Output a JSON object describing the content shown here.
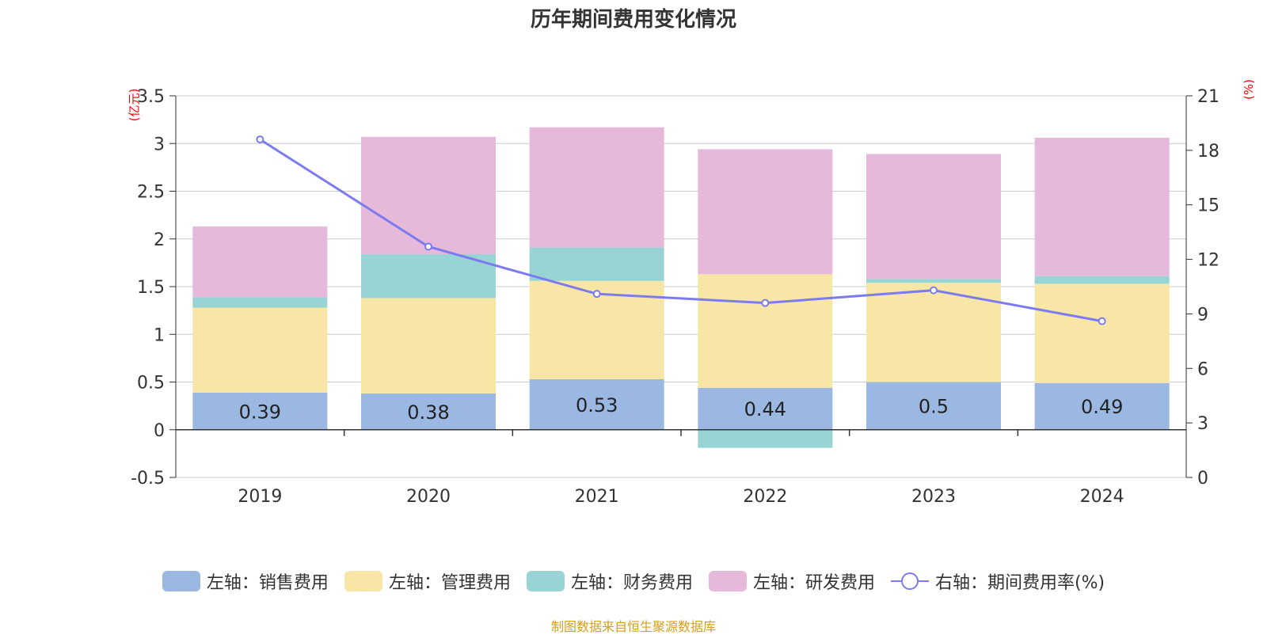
{
  "title": "历年期间费用变化情况",
  "left_unit": "(亿元)",
  "right_unit": "(%)",
  "source": "制图数据来自恒生聚源数据库",
  "colors": {
    "sales": "#9bb8e3",
    "admin": "#f7e6a6",
    "finance": "#99d4d4",
    "rd": "#e6b8d9",
    "rate": "#7b7bef",
    "grid": "#cccccc",
    "axis": "#333333"
  },
  "legend": [
    {
      "label": "左轴：销售费用",
      "color": "#9bb8e3",
      "type": "bar"
    },
    {
      "label": "左轴：管理费用",
      "color": "#f7e6a6",
      "type": "bar"
    },
    {
      "label": "左轴：财务费用",
      "color": "#99d4d4",
      "type": "bar"
    },
    {
      "label": "左轴：研发费用",
      "color": "#e6b8d9",
      "type": "bar"
    },
    {
      "label": "右轴：期间费用率(%)",
      "color": "#7b7bef",
      "type": "line"
    }
  ],
  "chart_data": {
    "type": "bar",
    "stacked": true,
    "title": "历年期间费用变化情况",
    "categories": [
      "2019",
      "2020",
      "2021",
      "2022",
      "2023",
      "2024"
    ],
    "series": [
      {
        "name": "左轴：销售费用",
        "axis": "left",
        "values": [
          0.39,
          0.38,
          0.53,
          0.44,
          0.5,
          0.49
        ],
        "labels": [
          "0.39",
          "0.38",
          "0.53",
          "0.44",
          "0.5",
          "0.49"
        ]
      },
      {
        "name": "左轴：管理费用",
        "axis": "left",
        "values": [
          0.89,
          1.0,
          1.03,
          1.19,
          1.04,
          1.04
        ]
      },
      {
        "name": "左轴：财务费用",
        "axis": "left",
        "values": [
          0.11,
          0.46,
          0.35,
          -0.19,
          0.04,
          0.08
        ]
      },
      {
        "name": "左轴：研发费用",
        "axis": "left",
        "values": [
          0.74,
          1.23,
          1.26,
          1.31,
          1.31,
          1.45
        ]
      },
      {
        "name": "右轴：期间费用率(%)",
        "axis": "right",
        "type": "line",
        "values": [
          18.6,
          12.7,
          10.1,
          9.6,
          10.3,
          8.6
        ]
      }
    ],
    "ylim_left": [
      -0.5,
      3.5
    ],
    "yticks_left": [
      "-0.5",
      "0",
      "0.5",
      "1",
      "1.5",
      "2",
      "2.5",
      "3",
      "3.5"
    ],
    "ylim_right": [
      0,
      21
    ],
    "yticks_right": [
      "0",
      "3",
      "6",
      "9",
      "12",
      "15",
      "18",
      "21"
    ],
    "ylabel_left": "(亿元)",
    "ylabel_right": "(%)",
    "legend_position": "bottom"
  }
}
